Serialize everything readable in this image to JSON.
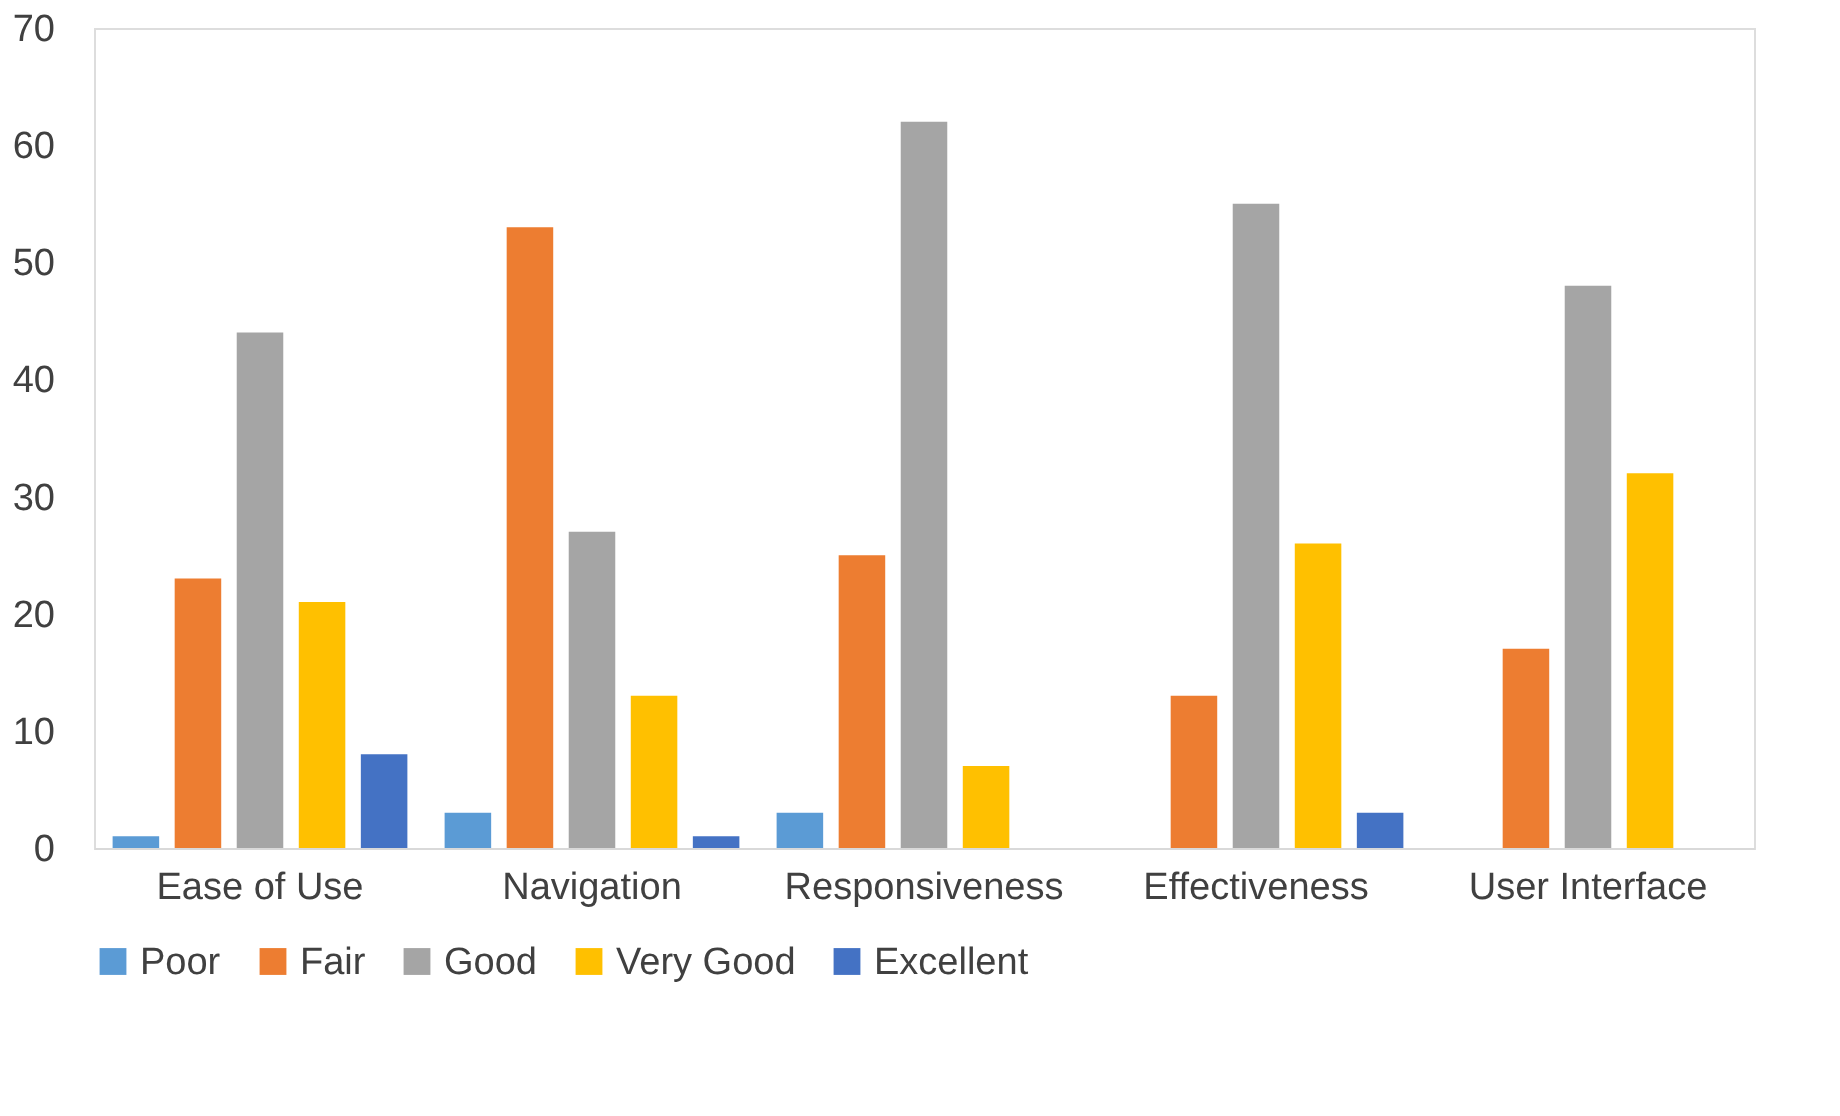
{
  "chart_data": {
    "type": "bar",
    "categories": [
      "Ease of Use",
      "Navigation",
      "Responsiveness",
      "Effectiveness",
      "User Interface"
    ],
    "series": [
      {
        "name": "Poor",
        "color": "#5b9bd5",
        "values": [
          1,
          3,
          3,
          0,
          0
        ]
      },
      {
        "name": "Fair",
        "color": "#ed7d31",
        "values": [
          23,
          53,
          25,
          13,
          17
        ]
      },
      {
        "name": "Good",
        "color": "#a5a5a5",
        "values": [
          44,
          27,
          62,
          55,
          48
        ]
      },
      {
        "name": "Very Good",
        "color": "#ffc000",
        "values": [
          21,
          13,
          7,
          26,
          32
        ]
      },
      {
        "name": "Excellent",
        "color": "#4472c4",
        "values": [
          8,
          1,
          0,
          3,
          0
        ]
      }
    ],
    "ylim": [
      0,
      70
    ],
    "yticks": [
      0,
      10,
      20,
      30,
      40,
      50,
      60,
      70
    ],
    "grid": false,
    "legend": "bottom"
  }
}
